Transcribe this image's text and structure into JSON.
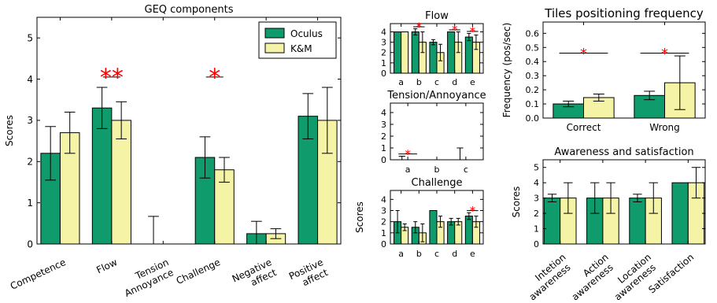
{
  "colors": {
    "oculus": "#0f9b6b",
    "km": "#f5f3a6",
    "significance": "#ff0000",
    "errorbar": "#000000"
  },
  "chart_data": [
    {
      "id": "geq",
      "type": "bar",
      "title": "GEQ components",
      "ylabel": "Scores",
      "ylim": [
        0,
        5.5
      ],
      "yticks": [
        0,
        1,
        2,
        3,
        4,
        5
      ],
      "categories": [
        [
          "Competence"
        ],
        [
          "Flow"
        ],
        [
          "Tension",
          "Annoyance"
        ],
        [
          "Challenge"
        ],
        [
          "Negative",
          "affect"
        ],
        [
          "Positive",
          "affect"
        ]
      ],
      "series": [
        {
          "name": "Oculus",
          "values": [
            2.2,
            3.3,
            0,
            2.1,
            0.25,
            3.1
          ],
          "errors": [
            0.65,
            0.5,
            0.67,
            0.5,
            0.3,
            0.55
          ]
        },
        {
          "name": "K&M",
          "values": [
            2.7,
            3.0,
            0,
            1.8,
            0.25,
            3.0
          ],
          "errors": [
            0.5,
            0.45,
            0,
            0.3,
            0.12,
            0.8
          ]
        }
      ],
      "significance": [
        {
          "category": 1,
          "marks": "**",
          "y": 4.05
        },
        {
          "category": 3,
          "marks": "*",
          "y": 4.05
        }
      ],
      "legend": {
        "position": "top-right",
        "entries": [
          "Oculus",
          "K&M"
        ]
      }
    },
    {
      "id": "flow",
      "type": "bar",
      "title": "Flow",
      "ylim": [
        0,
        4.8
      ],
      "yticks": [
        0,
        1,
        2,
        3,
        4
      ],
      "categories": [
        "a",
        "b",
        "c",
        "d",
        "e"
      ],
      "series": [
        {
          "name": "Oculus",
          "values": [
            4.0,
            4.0,
            3.0,
            4.0,
            3.5
          ],
          "errors": [
            0,
            0.3,
            0.25,
            0,
            0.35
          ]
        },
        {
          "name": "K&M",
          "values": [
            4.0,
            3.0,
            2.0,
            3.0,
            3.0
          ],
          "errors": [
            0,
            1.0,
            0.8,
            1.0,
            0.7
          ]
        }
      ],
      "significance": [
        {
          "category": 1,
          "marks": "*"
        },
        {
          "category": 3,
          "marks": "*"
        },
        {
          "category": 4,
          "marks": "*"
        }
      ]
    },
    {
      "id": "tension",
      "type": "bar",
      "title": "Tension/Annoyance",
      "ylim": [
        0,
        4.8
      ],
      "yticks": [
        0,
        1,
        2,
        3,
        4
      ],
      "categories": [
        "a",
        "b",
        "c"
      ],
      "series": [
        {
          "name": "Oculus",
          "values": [
            0,
            0,
            0
          ],
          "errors": [
            0.3,
            0,
            1.0
          ]
        },
        {
          "name": "K&M",
          "values": [
            0,
            0,
            0
          ],
          "errors": [
            0,
            0,
            0
          ]
        }
      ],
      "significance": [
        {
          "category": 0,
          "marks": "*"
        }
      ]
    },
    {
      "id": "challenge",
      "type": "bar",
      "title": "Challenge",
      "ylabel": "Scores",
      "ylim": [
        0,
        4.8
      ],
      "yticks": [
        0,
        1,
        2,
        3,
        4
      ],
      "categories": [
        "a",
        "b",
        "c",
        "d",
        "e"
      ],
      "series": [
        {
          "name": "Oculus",
          "values": [
            2.0,
            1.5,
            3.0,
            2.0,
            2.5
          ],
          "errors": [
            1.0,
            0.5,
            0,
            0.3,
            0.3
          ]
        },
        {
          "name": "K&M",
          "values": [
            1.5,
            1.0,
            2.0,
            2.0,
            2.0
          ],
          "errors": [
            0.3,
            0.8,
            0.5,
            0.3,
            0.5
          ]
        }
      ],
      "significance": [
        {
          "category": 4,
          "marks": "*"
        }
      ]
    },
    {
      "id": "tiles",
      "type": "bar",
      "title": "Tiles positioning frequency",
      "ylabel": "Frequency (pos/sec)",
      "ylim": [
        0,
        0.68
      ],
      "yticks": [
        0.0,
        0.1,
        0.2,
        0.3,
        0.4,
        0.5,
        0.6
      ],
      "categories": [
        "Correct",
        "Wrong"
      ],
      "series": [
        {
          "name": "Oculus",
          "values": [
            0.1,
            0.16
          ],
          "errors": [
            0.02,
            0.03
          ]
        },
        {
          "name": "K&M",
          "values": [
            0.145,
            0.25
          ],
          "errors": [
            0.025,
            0.19
          ]
        }
      ],
      "significance": [
        {
          "category": 0,
          "marks": "*",
          "y": 0.46
        },
        {
          "category": 1,
          "marks": "*",
          "y": 0.46
        }
      ]
    },
    {
      "id": "awareness",
      "type": "bar",
      "title": "Awareness and satisfaction",
      "ylabel": "Scores",
      "ylim": [
        0,
        5.5
      ],
      "yticks": [
        0,
        1,
        2,
        3,
        4,
        5
      ],
      "categories": [
        [
          "Intetion",
          "awareness"
        ],
        [
          "Action",
          "awareness"
        ],
        [
          "Location",
          "awareness"
        ],
        [
          "Satisfaction"
        ]
      ],
      "series": [
        {
          "name": "Oculus",
          "values": [
            3.0,
            3.0,
            3.0,
            4.0
          ],
          "errors": [
            0.25,
            1.0,
            0.25,
            0
          ]
        },
        {
          "name": "K&M",
          "values": [
            3.0,
            3.0,
            3.0,
            4.0
          ],
          "errors": [
            1.0,
            1.0,
            1.0,
            1.0
          ]
        }
      ],
      "significance": []
    }
  ]
}
